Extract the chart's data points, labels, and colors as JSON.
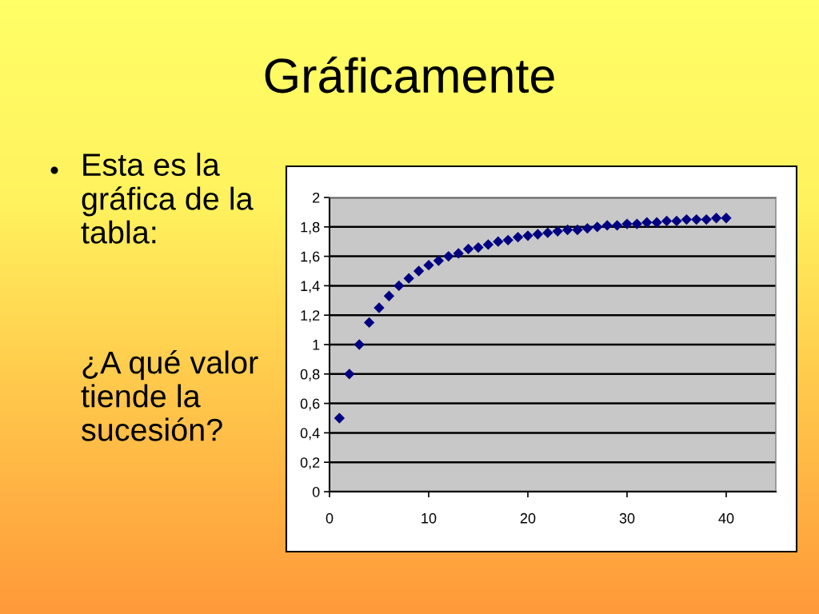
{
  "chart_data": {
    "type": "scatter",
    "title": "Gráficamente",
    "annotations": [
      "Esta es la\ngráfica de la\ntabla:",
      "¿A qué valor\ntiende la\nsucesión?"
    ],
    "x": [
      1,
      2,
      3,
      4,
      5,
      6,
      7,
      8,
      9,
      10,
      11,
      12,
      13,
      14,
      15,
      16,
      17,
      18,
      19,
      20,
      21,
      22,
      23,
      24,
      25,
      26,
      27,
      28,
      29,
      30,
      31,
      32,
      33,
      34,
      35,
      36,
      37,
      38,
      39,
      40
    ],
    "series": [
      {
        "color": "#000080",
        "values": [
          0.5,
          0.8,
          1.0,
          1.15,
          1.25,
          1.33,
          1.4,
          1.45,
          1.5,
          1.54,
          1.57,
          1.6,
          1.62,
          1.65,
          1.66,
          1.68,
          1.7,
          1.71,
          1.73,
          1.74,
          1.75,
          1.76,
          1.77,
          1.78,
          1.78,
          1.79,
          1.8,
          1.81,
          1.81,
          1.82,
          1.82,
          1.83,
          1.83,
          1.84,
          1.84,
          1.85,
          1.85,
          1.85,
          1.86,
          1.86
        ]
      }
    ],
    "xlim": [
      0,
      45
    ],
    "xticks": [
      0,
      10,
      20,
      30,
      40
    ],
    "ylim": [
      0,
      2
    ],
    "yticks": [
      0,
      {
        "value": 0.2,
        "label": "0,2"
      },
      {
        "value": 0.4,
        "label": "0,4"
      },
      {
        "value": 0.6,
        "label": "0,6"
      },
      {
        "value": 0.8,
        "label": "0,8"
      },
      1,
      {
        "value": 1.2,
        "label": "1,2"
      },
      {
        "value": 1.4,
        "label": "1,4"
      },
      {
        "value": 1.6,
        "label": "1,6"
      },
      {
        "value": 1.8,
        "label": "1,8"
      },
      2
    ],
    "grid": "y",
    "marker": "diamond"
  }
}
